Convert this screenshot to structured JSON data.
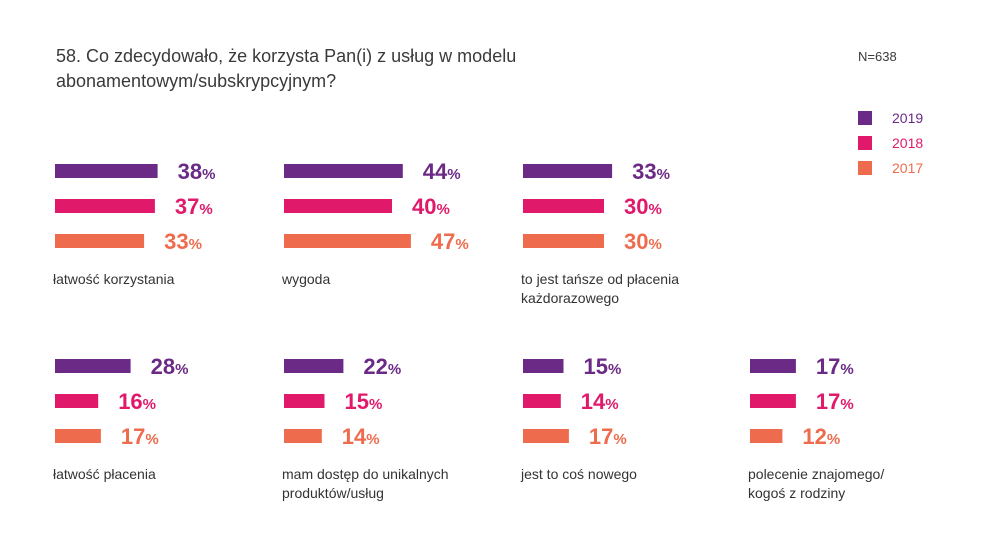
{
  "title_lines": [
    "58. Co zdecydowało, że korzysta Pan(i) z usług w modelu",
    "abonamentowym/subskrypcyjnym?"
  ],
  "sample_size": "N=638",
  "colors": {
    "2019": "#6b2a86",
    "2018": "#e0196b",
    "2017": "#ee6c4d"
  },
  "legend": [
    {
      "label": "2019",
      "color": "#6b2a86"
    },
    {
      "label": "2018",
      "color": "#e0196b"
    },
    {
      "label": "2017",
      "color": "#ee6c4d"
    }
  ],
  "chart_data": {
    "type": "bar",
    "orientation": "horizontal",
    "unit": "%",
    "series_names": [
      "2019",
      "2018",
      "2017"
    ],
    "groups": [
      {
        "label_lines": [
          "łatwość korzystania"
        ],
        "values": [
          38,
          37,
          33
        ]
      },
      {
        "label_lines": [
          "wygoda"
        ],
        "values": [
          44,
          40,
          47
        ]
      },
      {
        "label_lines": [
          "to jest tańsze od płacenia",
          "każdorazowego"
        ],
        "values": [
          33,
          30,
          30
        ]
      },
      {
        "label_lines": [
          "łatwość płacenia"
        ],
        "values": [
          28,
          16,
          17
        ]
      },
      {
        "label_lines": [
          "mam dostęp do unikalnych",
          "produktów/usług"
        ],
        "values": [
          22,
          15,
          14
        ]
      },
      {
        "label_lines": [
          "jest to coś nowego"
        ],
        "values": [
          15,
          14,
          17
        ]
      },
      {
        "label_lines": [
          "polecenie znajomego/",
          "kogoś z rodziny"
        ],
        "values": [
          17,
          17,
          12
        ]
      }
    ]
  }
}
